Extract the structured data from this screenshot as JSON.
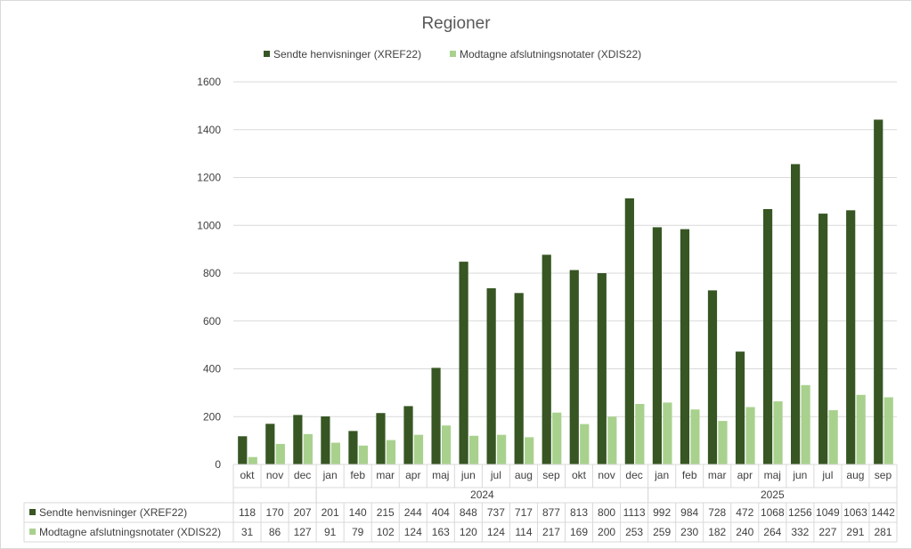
{
  "chart_data": {
    "type": "bar",
    "title": "Regioner",
    "ylim": [
      0,
      1600
    ],
    "yticks": [
      0,
      200,
      400,
      600,
      800,
      1000,
      1200,
      1400,
      1600
    ],
    "grid": true,
    "legend_position": "top",
    "categories": [
      "okt",
      "nov",
      "dec",
      "jan",
      "feb",
      "mar",
      "apr",
      "maj",
      "jun",
      "jul",
      "aug",
      "sep",
      "okt",
      "nov",
      "dec",
      "jan",
      "feb",
      "mar",
      "apr",
      "maj",
      "jun",
      "jul",
      "aug",
      "sep"
    ],
    "year_groups": [
      {
        "label": "",
        "start": 0,
        "count": 3
      },
      {
        "label": "2024",
        "start": 3,
        "count": 12
      },
      {
        "label": "2025",
        "start": 15,
        "count": 9
      }
    ],
    "series": [
      {
        "name": "Sendte henvisninger (XREF22)",
        "color": "#375623",
        "values": [
          118,
          170,
          207,
          201,
          140,
          215,
          244,
          404,
          848,
          737,
          717,
          877,
          813,
          800,
          1113,
          992,
          984,
          728,
          472,
          1068,
          1256,
          1049,
          1063,
          1442
        ]
      },
      {
        "name": "Modtagne afslutningsnotater (XDIS22)",
        "color": "#a9d18e",
        "values": [
          31,
          86,
          127,
          91,
          79,
          102,
          124,
          163,
          120,
          124,
          114,
          217,
          169,
          200,
          253,
          259,
          230,
          182,
          240,
          264,
          332,
          227,
          291,
          281
        ]
      }
    ]
  }
}
